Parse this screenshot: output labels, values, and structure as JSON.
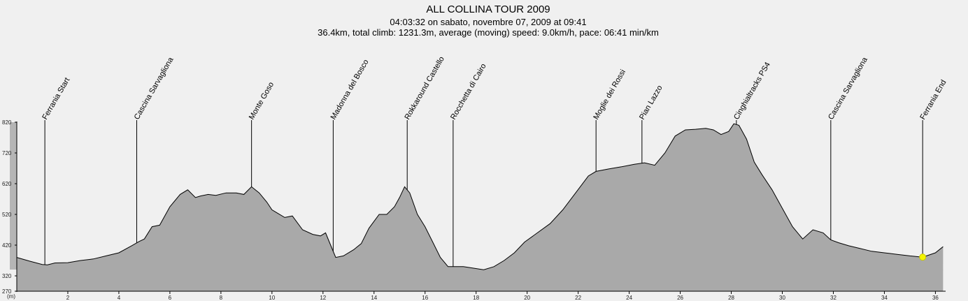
{
  "chart_data": {
    "type": "area",
    "title": "ALL COLLINA TOUR 2009",
    "subtitle_1": "04:03:32 on sabato, novembre 07, 2009 at 09:41",
    "subtitle_2": "36.4km, total climb: 1231.3m, average (moving) speed: 9.0km/h, pace: 06:41 min/km",
    "unit_label": "(m)",
    "xlim": [
      0,
      36.4
    ],
    "ylim": [
      270,
      820
    ],
    "x_ticks": [
      2,
      4,
      6,
      8,
      10,
      12,
      14,
      16,
      18,
      20,
      22,
      24,
      26,
      28,
      30,
      32,
      34,
      36
    ],
    "y_ticks": [
      270,
      320,
      420,
      520,
      620,
      720,
      820
    ],
    "grid": false,
    "fill_color": "#a9a9a9",
    "line_color": "#000000",
    "marker": {
      "x": 35.5,
      "y": 381,
      "color": "#f4f400"
    },
    "series": [
      {
        "x": [
          0,
          0.5,
          1,
          1.2,
          1.5,
          2,
          2.5,
          3,
          3.5,
          4,
          4.5,
          4.8,
          5.0,
          5.3,
          5.6,
          6.0,
          6.4,
          6.7,
          7.0,
          7.2,
          7.5,
          7.8,
          8.2,
          8.6,
          8.9,
          9.2,
          9.5,
          9.8,
          10.0,
          10.2,
          10.5,
          10.8,
          11.2,
          11.6,
          11.9,
          12.1,
          12.3,
          12.5,
          12.8,
          13.2,
          13.5,
          13.8,
          14.2,
          14.5,
          14.8,
          15.0,
          15.2,
          15.4,
          15.7,
          16.0,
          16.3,
          16.6,
          16.9,
          17.1,
          17.5,
          17.9,
          18.3,
          18.7,
          19.1,
          19.5,
          19.9,
          20.4,
          20.9,
          21.4,
          21.9,
          22.4,
          22.7,
          23.2,
          23.7,
          24.2,
          24.6,
          25.0,
          25.4,
          25.8,
          26.2,
          26.6,
          27.0,
          27.3,
          27.6,
          27.9,
          28.1,
          28.3,
          28.6,
          28.9,
          29.2,
          29.6,
          30.0,
          30.4,
          30.8,
          31.2,
          31.6,
          31.9,
          32.2,
          32.6,
          33.0,
          33.5,
          34.0,
          34.5,
          35.0,
          35.5,
          36.0,
          36.3
        ],
        "y": [
          380,
          368,
          357,
          356,
          362,
          363,
          370,
          375,
          385,
          395,
          418,
          432,
          440,
          480,
          485,
          545,
          585,
          600,
          575,
          580,
          585,
          582,
          590,
          590,
          585,
          610,
          590,
          560,
          535,
          525,
          510,
          515,
          470,
          455,
          450,
          460,
          420,
          380,
          385,
          405,
          425,
          475,
          520,
          520,
          545,
          575,
          610,
          590,
          520,
          480,
          430,
          380,
          350,
          350,
          350,
          345,
          340,
          350,
          370,
          395,
          430,
          460,
          490,
          535,
          590,
          645,
          660,
          668,
          675,
          683,
          688,
          680,
          720,
          775,
          795,
          797,
          800,
          795,
          780,
          790,
          815,
          810,
          765,
          690,
          650,
          600,
          540,
          480,
          440,
          470,
          460,
          437,
          428,
          418,
          410,
          400,
          395,
          390,
          385,
          381,
          395,
          415
        ]
      }
    ],
    "waypoints": [
      {
        "x": 1.1,
        "label": "Ferrania Start"
      },
      {
        "x": 4.7,
        "label": "Cascina Sarvagliona"
      },
      {
        "x": 9.2,
        "label": "Monte Goso"
      },
      {
        "x": 12.4,
        "label": "Madonna del Bosco"
      },
      {
        "x": 15.3,
        "label": "Rokkaround Castello"
      },
      {
        "x": 17.1,
        "label": "Rocchetta di Cairo"
      },
      {
        "x": 22.7,
        "label": "Moglie dei Rossi"
      },
      {
        "x": 24.5,
        "label": "Pian Lazzo"
      },
      {
        "x": 28.2,
        "label": "Cinghialtracks PS4"
      },
      {
        "x": 31.9,
        "label": "Cascina Sarvagliona"
      },
      {
        "x": 35.5,
        "label": "Ferrania End"
      }
    ]
  }
}
